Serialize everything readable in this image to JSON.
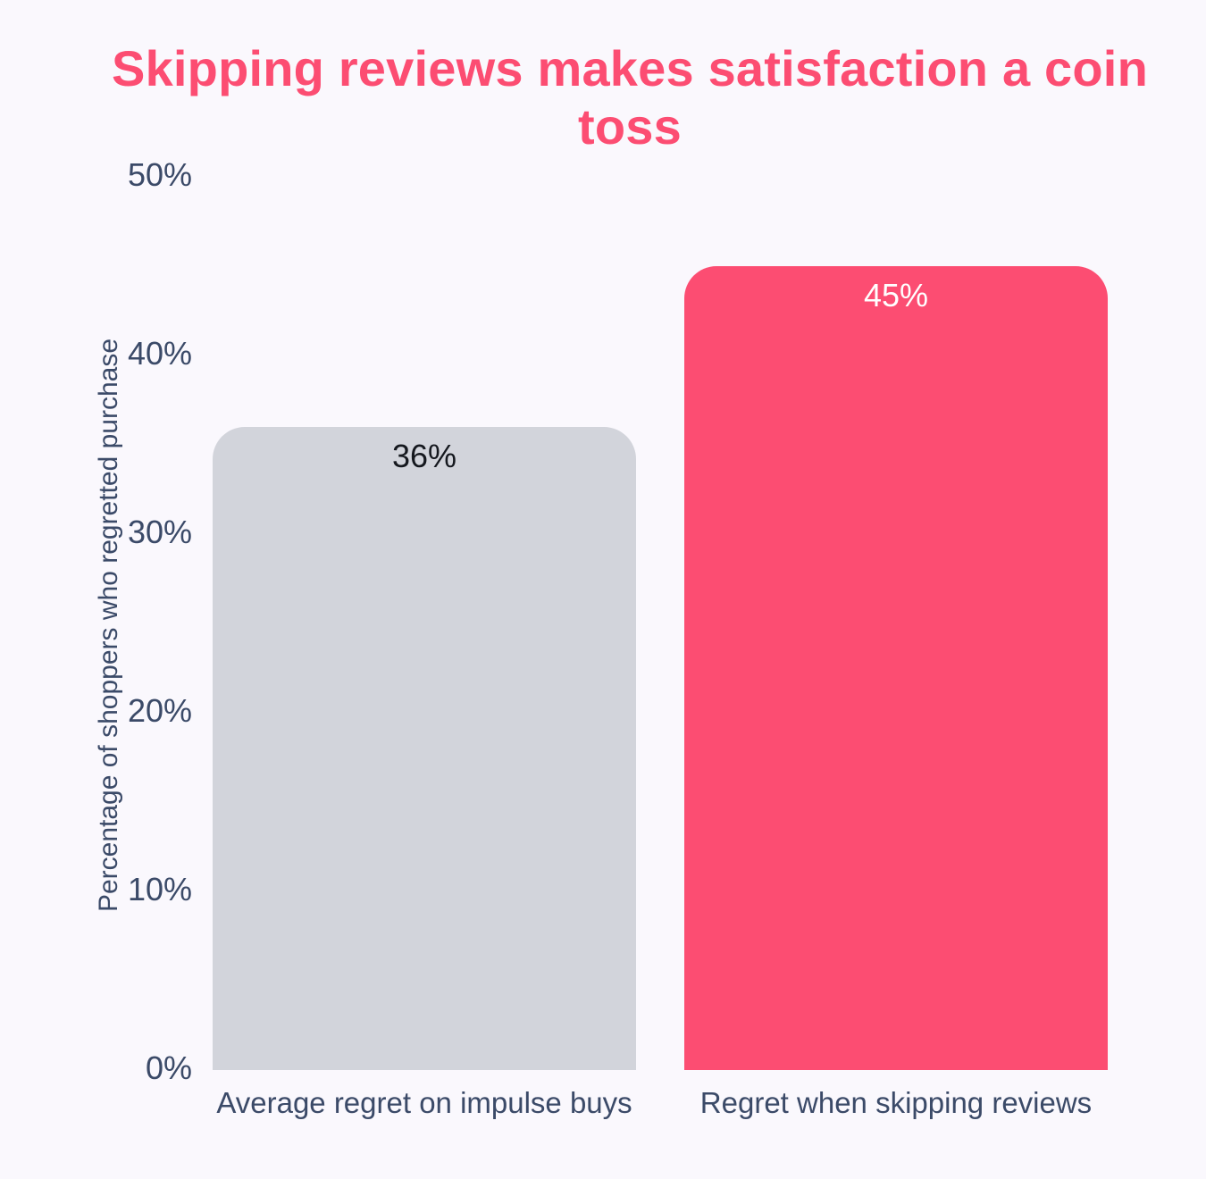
{
  "page": {
    "background": "#FAF8FD"
  },
  "chart": {
    "title": "Skipping reviews makes satisfaction a coin toss",
    "y_axis_label": "Percentage of shoppers who regretted purchase"
  },
  "chart_data": {
    "type": "bar",
    "title": "Skipping reviews makes satisfaction a coin toss",
    "categories": [
      "Average regret on impulse buys",
      "Regret when skipping reviews"
    ],
    "values": [
      36,
      45
    ],
    "value_labels": [
      "36%",
      "45%"
    ],
    "series_colors": [
      "#D2D4DB",
      "#FC4D72"
    ],
    "value_label_colors": [
      "#15181E",
      "#FFFFFF"
    ],
    "xlabel": "",
    "ylabel": "Percentage of shoppers who regretted purchase",
    "ylim": [
      0,
      50
    ],
    "yticks": [
      0,
      10,
      20,
      30,
      40,
      50
    ],
    "ytick_labels": [
      "0%",
      "10%",
      "20%",
      "30%",
      "40%",
      "50%"
    ],
    "grid": false,
    "legend": false,
    "bar_corners": "rounded-top"
  },
  "colors": {
    "background": "#FAF8FD",
    "title_pink": "#FC4D72",
    "bar_gray": "#D2D4DB",
    "bar_pink": "#FC4D72",
    "axis_text": "#3B4A68",
    "value_on_gray": "#15181E",
    "value_on_pink": "#FFFFFF"
  }
}
